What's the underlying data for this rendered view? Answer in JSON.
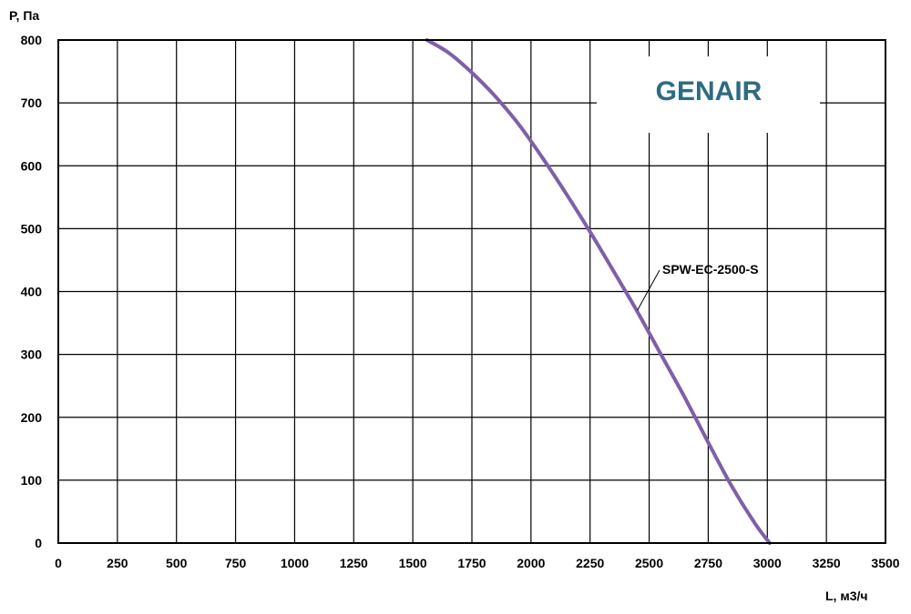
{
  "brand": {
    "text": "GENAIR",
    "color": "#2e6b80"
  },
  "chart_data": {
    "type": "line",
    "title": "",
    "xlabel": "L, м3/ч",
    "ylabel": "P, Па",
    "xlim": [
      0,
      3500
    ],
    "ylim": [
      0,
      800
    ],
    "x_ticks": [
      0,
      250,
      500,
      750,
      1000,
      1250,
      1500,
      1750,
      2000,
      2250,
      2500,
      2750,
      3000,
      3250,
      3500
    ],
    "y_ticks": [
      0,
      100,
      200,
      300,
      400,
      500,
      600,
      700,
      800
    ],
    "grid": true,
    "series": [
      {
        "name": "SPW-EC-2500-S",
        "color": "#7f5fa8",
        "x": [
          1560,
          1650,
          1750,
          1850,
          1950,
          2050,
          2150,
          2250,
          2350,
          2450,
          2550,
          2650,
          2750,
          2850,
          2950,
          3010
        ],
        "y": [
          800,
          780,
          748,
          710,
          665,
          612,
          555,
          495,
          432,
          368,
          300,
          232,
          160,
          90,
          30,
          0
        ]
      }
    ]
  }
}
